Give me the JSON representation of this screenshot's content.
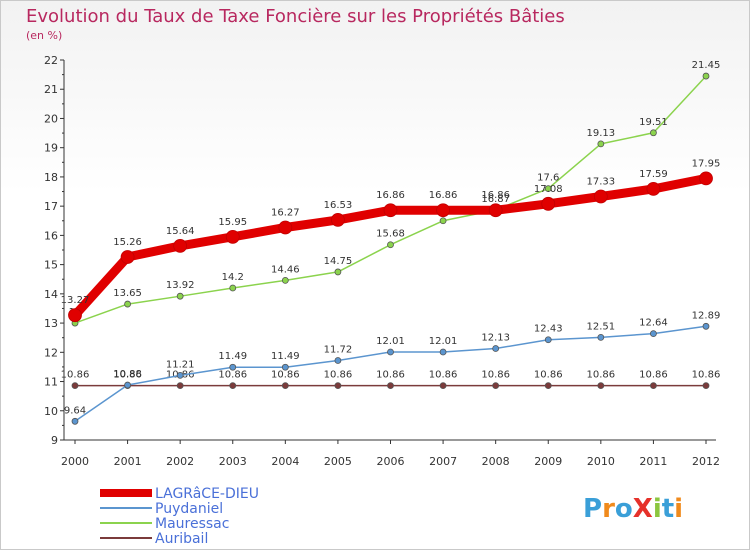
{
  "chart_data": {
    "type": "line",
    "title": "Evolution du Taux de Taxe Foncière sur les Propriétés Bâties",
    "subtitle": "(en %)",
    "x": [
      "2000",
      "2001",
      "2002",
      "2003",
      "2004",
      "2005",
      "2006",
      "2007",
      "2008",
      "2009",
      "2010",
      "2011",
      "2012"
    ],
    "ylim": [
      9,
      22
    ],
    "yticks": [
      9,
      10,
      11,
      12,
      13,
      14,
      15,
      16,
      17,
      18,
      19,
      20,
      21,
      22
    ],
    "series": [
      {
        "name": "LAGRâCE-DIEU",
        "color": "#e00000",
        "values": [
          13.27,
          15.26,
          15.64,
          15.95,
          16.27,
          16.53,
          16.86,
          16.86,
          16.86,
          17.08,
          17.33,
          17.59,
          17.95
        ],
        "labels": [
          "13.27",
          "15.26",
          "15.64",
          "15.95",
          "16.27",
          "16.53",
          "16.86",
          "16.86",
          "16.86",
          "17.08",
          "17.33",
          "17.59",
          "17.95"
        ]
      },
      {
        "name": "Puydaniel",
        "color": "#5b95cf",
        "values": [
          9.64,
          10.88,
          11.21,
          11.49,
          11.49,
          11.72,
          12.01,
          12.01,
          12.13,
          12.43,
          12.51,
          12.64,
          12.89
        ],
        "labels": [
          "9.64",
          "10.88",
          "11.21",
          "11.49",
          "11.49",
          "11.72",
          "12.01",
          "12.01",
          "12.13",
          "12.43",
          "12.51",
          "12.64",
          "12.89"
        ]
      },
      {
        "name": "Mauressac",
        "color": "#8bd34d",
        "values": [
          13.0,
          13.65,
          13.92,
          14.2,
          14.46,
          14.75,
          15.68,
          16.5,
          16.87,
          17.6,
          19.13,
          19.51,
          21.45
        ],
        "labels": [
          "13",
          "13.65",
          "13.92",
          "14.2",
          "14.46",
          "14.75",
          "15.68",
          "16.5",
          "16.87",
          "17.6",
          "19.13",
          "19.51",
          "21.45"
        ]
      },
      {
        "name": "Auribail",
        "color": "#7b3b3b",
        "values": [
          10.86,
          10.86,
          10.86,
          10.86,
          10.86,
          10.86,
          10.86,
          10.86,
          10.86,
          10.86,
          10.86,
          10.86,
          10.86
        ],
        "labels": [
          "10.86",
          "10.86",
          "10.86",
          "10.86",
          "10.86",
          "10.86",
          "10.86",
          "10.86",
          "10.86",
          "10.86",
          "10.86",
          "10.86",
          "10.86"
        ]
      }
    ]
  },
  "brand": {
    "text": "ProXiti"
  }
}
